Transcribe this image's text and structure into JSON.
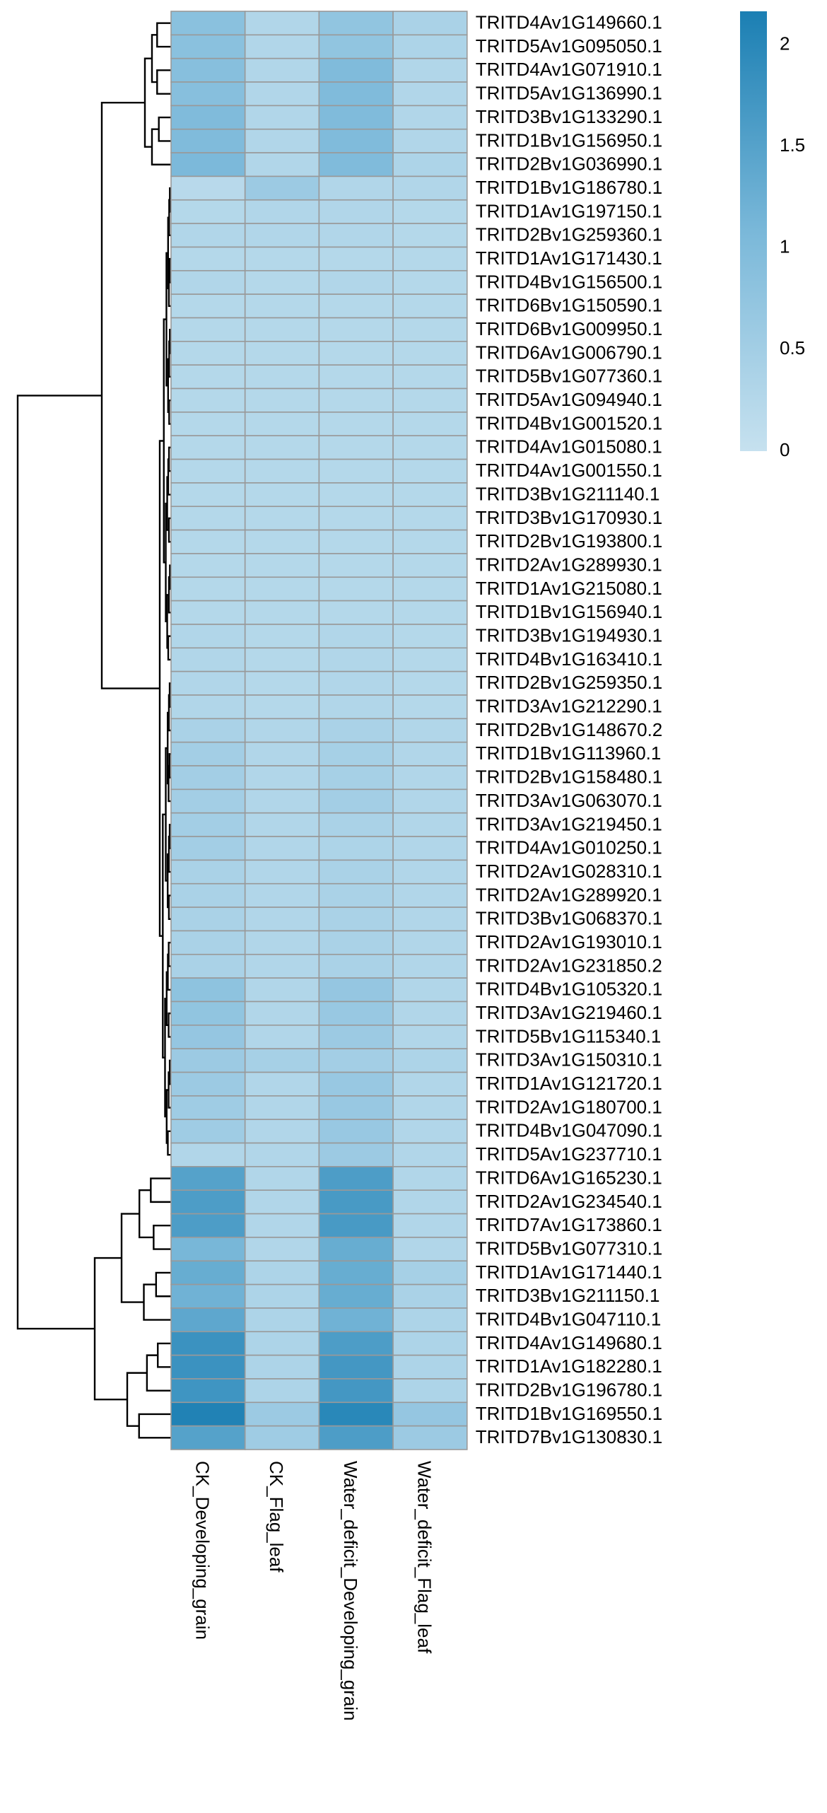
{
  "chart_data": {
    "type": "heatmap",
    "rows": [
      "TRITD4Av1G149660.1",
      "TRITD5Av1G095050.1",
      "TRITD4Av1G071910.1",
      "TRITD5Av1G136990.1",
      "TRITD3Bv1G133290.1",
      "TRITD1Bv1G156950.1",
      "TRITD2Bv1G036990.1",
      "TRITD1Bv1G186780.1",
      "TRITD1Av1G197150.1",
      "TRITD2Bv1G259360.1",
      "TRITD1Av1G171430.1",
      "TRITD4Bv1G156500.1",
      "TRITD6Bv1G150590.1",
      "TRITD6Bv1G009950.1",
      "TRITD6Av1G006790.1",
      "TRITD5Bv1G077360.1",
      "TRITD5Av1G094940.1",
      "TRITD4Bv1G001520.1",
      "TRITD4Av1G015080.1",
      "TRITD4Av1G001550.1",
      "TRITD3Bv1G211140.1",
      "TRITD3Bv1G170930.1",
      "TRITD2Bv1G193800.1",
      "TRITD2Av1G289930.1",
      "TRITD1Av1G215080.1",
      "TRITD1Bv1G156940.1",
      "TRITD3Bv1G194930.1",
      "TRITD4Bv1G163410.1",
      "TRITD2Bv1G259350.1",
      "TRITD3Av1G212290.1",
      "TRITD2Bv1G148670.2",
      "TRITD1Bv1G113960.1",
      "TRITD2Bv1G158480.1",
      "TRITD3Av1G063070.1",
      "TRITD3Av1G219450.1",
      "TRITD4Av1G010250.1",
      "TRITD2Av1G028310.1",
      "TRITD2Av1G289920.1",
      "TRITD3Bv1G068370.1",
      "TRITD2Av1G193010.1",
      "TRITD2Av1G231850.2",
      "TRITD4Bv1G105320.1",
      "TRITD3Av1G219460.1",
      "TRITD5Bv1G115340.1",
      "TRITD3Av1G150310.1",
      "TRITD1Av1G121720.1",
      "TRITD2Av1G180700.1",
      "TRITD4Bv1G047090.1",
      "TRITD5Av1G237710.1",
      "TRITD6Av1G165230.1",
      "TRITD2Av1G234540.1",
      "TRITD7Av1G173860.1",
      "TRITD5Bv1G077310.1",
      "TRITD1Av1G171440.1",
      "TRITD3Bv1G211150.1",
      "TRITD4Bv1G047110.1",
      "TRITD4Av1G149680.1",
      "TRITD1Av1G182280.1",
      "TRITD2Bv1G196780.1",
      "TRITD1Bv1G169550.1",
      "TRITD7Bv1G130830.1"
    ],
    "columns": [
      "CK_Developing_grain",
      "CK_Flag_leaf",
      "Water_deficit_Developing_grain",
      "Water_deficit_Flag_leaf"
    ],
    "values": [
      [
        0.85,
        0.3,
        0.75,
        0.4
      ],
      [
        0.85,
        0.3,
        0.75,
        0.35
      ],
      [
        0.9,
        0.3,
        1.0,
        0.3
      ],
      [
        0.9,
        0.3,
        1.0,
        0.3
      ],
      [
        1.0,
        0.3,
        1.0,
        0.3
      ],
      [
        1.0,
        0.3,
        1.0,
        0.3
      ],
      [
        1.05,
        0.3,
        1.0,
        0.35
      ],
      [
        0.2,
        0.6,
        0.3,
        0.3
      ],
      [
        0.25,
        0.3,
        0.3,
        0.25
      ],
      [
        0.3,
        0.3,
        0.3,
        0.25
      ],
      [
        0.25,
        0.25,
        0.25,
        0.25
      ],
      [
        0.3,
        0.25,
        0.3,
        0.25
      ],
      [
        0.25,
        0.25,
        0.25,
        0.25
      ],
      [
        0.25,
        0.25,
        0.25,
        0.25
      ],
      [
        0.25,
        0.25,
        0.25,
        0.25
      ],
      [
        0.25,
        0.25,
        0.25,
        0.25
      ],
      [
        0.25,
        0.25,
        0.25,
        0.25
      ],
      [
        0.25,
        0.25,
        0.25,
        0.25
      ],
      [
        0.25,
        0.25,
        0.25,
        0.25
      ],
      [
        0.25,
        0.25,
        0.25,
        0.25
      ],
      [
        0.25,
        0.25,
        0.25,
        0.25
      ],
      [
        0.25,
        0.25,
        0.25,
        0.25
      ],
      [
        0.25,
        0.25,
        0.25,
        0.25
      ],
      [
        0.25,
        0.25,
        0.25,
        0.25
      ],
      [
        0.25,
        0.25,
        0.25,
        0.25
      ],
      [
        0.25,
        0.25,
        0.25,
        0.25
      ],
      [
        0.3,
        0.25,
        0.3,
        0.25
      ],
      [
        0.3,
        0.25,
        0.3,
        0.25
      ],
      [
        0.3,
        0.25,
        0.3,
        0.25
      ],
      [
        0.3,
        0.25,
        0.3,
        0.25
      ],
      [
        0.4,
        0.3,
        0.4,
        0.3
      ],
      [
        0.5,
        0.3,
        0.45,
        0.3
      ],
      [
        0.5,
        0.3,
        0.45,
        0.3
      ],
      [
        0.5,
        0.3,
        0.5,
        0.3
      ],
      [
        0.5,
        0.3,
        0.4,
        0.3
      ],
      [
        0.5,
        0.3,
        0.35,
        0.3
      ],
      [
        0.4,
        0.3,
        0.4,
        0.3
      ],
      [
        0.4,
        0.3,
        0.4,
        0.3
      ],
      [
        0.4,
        0.3,
        0.4,
        0.3
      ],
      [
        0.4,
        0.3,
        0.4,
        0.3
      ],
      [
        0.4,
        0.3,
        0.4,
        0.3
      ],
      [
        0.8,
        0.3,
        0.7,
        0.3
      ],
      [
        0.75,
        0.3,
        0.65,
        0.3
      ],
      [
        0.7,
        0.3,
        0.6,
        0.3
      ],
      [
        0.6,
        0.45,
        0.5,
        0.35
      ],
      [
        0.6,
        0.3,
        0.65,
        0.3
      ],
      [
        0.55,
        0.3,
        0.65,
        0.3
      ],
      [
        0.55,
        0.3,
        0.65,
        0.3
      ],
      [
        0.3,
        0.3,
        0.6,
        0.3
      ],
      [
        1.5,
        0.3,
        1.6,
        0.3
      ],
      [
        1.6,
        0.3,
        1.65,
        0.3
      ],
      [
        1.6,
        0.3,
        1.65,
        0.3
      ],
      [
        1.1,
        0.3,
        1.3,
        0.3
      ],
      [
        1.3,
        0.35,
        1.3,
        0.45
      ],
      [
        1.2,
        0.35,
        1.3,
        0.4
      ],
      [
        1.4,
        0.35,
        1.2,
        0.35
      ],
      [
        1.8,
        0.35,
        1.6,
        0.35
      ],
      [
        1.8,
        0.35,
        1.7,
        0.35
      ],
      [
        1.75,
        0.35,
        1.7,
        0.35
      ],
      [
        2.1,
        0.6,
        2.0,
        0.7
      ],
      [
        1.5,
        0.55,
        1.6,
        0.6
      ]
    ],
    "colors": [
      "#c6e1ef",
      "#7ab8d9",
      "#1b7fb3"
    ],
    "clim": [
      0,
      2.165
    ],
    "cticks": [
      0,
      0.5,
      1,
      1.5,
      2
    ]
  }
}
